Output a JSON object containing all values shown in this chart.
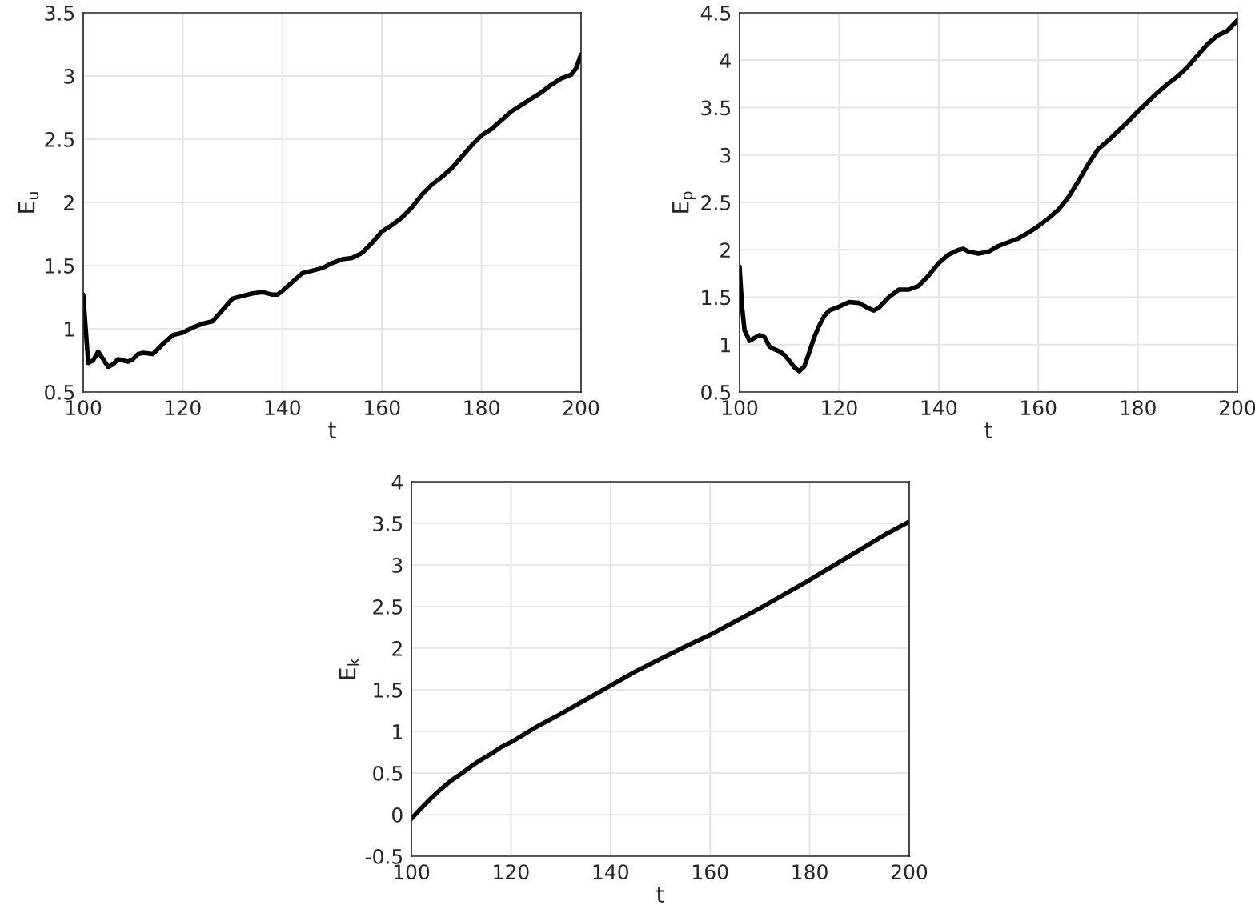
{
  "chart_data": [
    {
      "type": "line",
      "xlabel": "t",
      "ylabel": "E$_{u}$",
      "xlim": [
        100,
        200
      ],
      "ylim": [
        0.5,
        3.5
      ],
      "xticks": [
        100,
        120,
        140,
        160,
        180,
        200
      ],
      "yticks": [
        0.5,
        1,
        1.5,
        2,
        2.5,
        3,
        3.5
      ],
      "grid": true,
      "x": [
        100,
        100.5,
        101,
        102,
        103,
        104,
        105,
        106,
        107,
        108,
        109,
        110,
        111,
        112,
        114,
        116,
        118,
        120,
        122,
        124,
        126,
        128,
        130,
        132,
        134,
        136,
        138,
        139,
        140,
        142,
        144,
        146,
        148,
        150,
        152,
        154,
        156,
        158,
        160,
        162,
        164,
        166,
        168,
        170,
        172,
        174,
        176,
        178,
        180,
        182,
        184,
        186,
        188,
        190,
        192,
        194,
        196,
        198,
        199,
        200
      ],
      "series": [
        {
          "color": "#000000",
          "values": [
            1.27,
            1.0,
            0.73,
            0.75,
            0.82,
            0.76,
            0.7,
            0.72,
            0.76,
            0.75,
            0.74,
            0.76,
            0.8,
            0.81,
            0.8,
            0.88,
            0.95,
            0.97,
            1.01,
            1.04,
            1.06,
            1.15,
            1.24,
            1.26,
            1.28,
            1.29,
            1.27,
            1.27,
            1.3,
            1.37,
            1.44,
            1.46,
            1.48,
            1.52,
            1.55,
            1.56,
            1.6,
            1.68,
            1.77,
            1.82,
            1.88,
            1.96,
            2.06,
            2.14,
            2.2,
            2.27,
            2.36,
            2.45,
            2.53,
            2.58,
            2.65,
            2.72,
            2.77,
            2.82,
            2.87,
            2.93,
            2.98,
            3.01,
            3.06,
            3.17
          ]
        }
      ]
    },
    {
      "type": "line",
      "xlabel": "t",
      "ylabel": "E$_{p}$",
      "xlim": [
        100,
        200
      ],
      "ylim": [
        0.5,
        4.5
      ],
      "xticks": [
        100,
        120,
        140,
        160,
        180,
        200
      ],
      "yticks": [
        0.5,
        1,
        1.5,
        2,
        2.5,
        3,
        3.5,
        4,
        4.5
      ],
      "grid": true,
      "x": [
        100,
        100.5,
        101,
        102,
        103,
        104,
        105,
        106,
        107,
        108,
        109,
        110,
        111,
        112,
        113,
        114,
        115,
        116,
        117,
        118,
        120,
        122,
        124,
        126,
        127,
        128,
        130,
        132,
        134,
        136,
        138,
        140,
        142,
        144,
        145,
        146,
        148,
        150,
        152,
        154,
        156,
        158,
        160,
        162,
        164,
        166,
        168,
        170,
        172,
        174,
        176,
        178,
        180,
        182,
        184,
        186,
        188,
        190,
        192,
        194,
        196,
        198,
        200
      ],
      "series": [
        {
          "color": "#000000",
          "values": [
            1.82,
            1.4,
            1.15,
            1.04,
            1.07,
            1.1,
            1.08,
            0.98,
            0.95,
            0.93,
            0.89,
            0.83,
            0.76,
            0.72,
            0.77,
            0.92,
            1.08,
            1.2,
            1.3,
            1.36,
            1.4,
            1.45,
            1.44,
            1.38,
            1.36,
            1.39,
            1.5,
            1.58,
            1.58,
            1.62,
            1.73,
            1.86,
            1.95,
            2.0,
            2.01,
            1.98,
            1.96,
            1.98,
            2.04,
            2.08,
            2.12,
            2.18,
            2.25,
            2.33,
            2.42,
            2.55,
            2.72,
            2.9,
            3.06,
            3.15,
            3.25,
            3.35,
            3.46,
            3.56,
            3.66,
            3.75,
            3.83,
            3.93,
            4.05,
            4.17,
            4.26,
            4.31,
            4.42
          ]
        }
      ]
    },
    {
      "type": "line",
      "xlabel": "t",
      "ylabel": "E$_{k}$",
      "xlim": [
        100,
        200
      ],
      "ylim": [
        -0.5,
        4
      ],
      "xticks": [
        100,
        120,
        140,
        160,
        180,
        200
      ],
      "yticks": [
        -0.5,
        0,
        0.5,
        1,
        1.5,
        2,
        2.5,
        3,
        3.5,
        4
      ],
      "grid": true,
      "x": [
        100,
        102,
        104,
        106,
        108,
        110,
        112,
        114,
        116,
        118,
        120,
        125,
        130,
        135,
        140,
        145,
        150,
        155,
        160,
        165,
        170,
        175,
        180,
        185,
        190,
        195,
        200
      ],
      "series": [
        {
          "color": "#000000",
          "values": [
            -0.05,
            0.08,
            0.2,
            0.31,
            0.41,
            0.49,
            0.58,
            0.66,
            0.73,
            0.81,
            0.87,
            1.05,
            1.21,
            1.38,
            1.55,
            1.72,
            1.87,
            2.02,
            2.16,
            2.32,
            2.48,
            2.65,
            2.82,
            3.0,
            3.18,
            3.36,
            3.52
          ]
        }
      ]
    }
  ]
}
